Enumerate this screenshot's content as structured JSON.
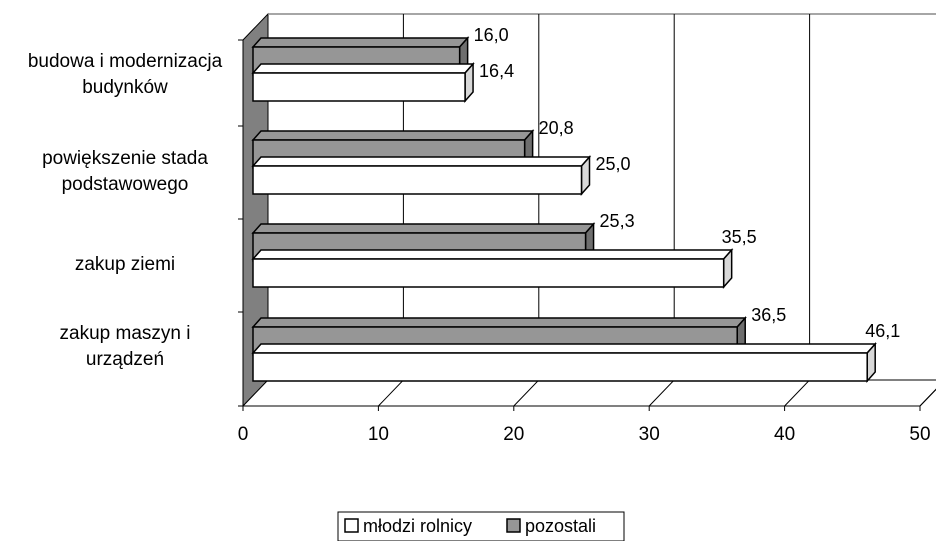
{
  "chart_data": {
    "type": "bar",
    "orientation": "horizontal",
    "style": "3d",
    "categories": [
      [
        "zakup maszyn i",
        "urządzeń"
      ],
      [
        "zakup ziemi"
      ],
      [
        "powiększenie stada",
        "podstawowego"
      ],
      [
        "budowa i modernizacja",
        "budynków"
      ]
    ],
    "series": [
      {
        "name": "młodzi rolnicy",
        "values": [
          46.1,
          35.5,
          25.0,
          16.4
        ],
        "labels": [
          "46,1",
          "35,5",
          "25,0",
          "16,4"
        ],
        "color": "#ffffff"
      },
      {
        "name": "pozostali",
        "values": [
          36.5,
          25.3,
          20.8,
          16.0
        ],
        "labels": [
          "36,5",
          "25,3",
          "20,8",
          "16,0"
        ],
        "color": "#969696"
      }
    ],
    "xlim": [
      0,
      50
    ],
    "xticks": [
      "0",
      "10",
      "20",
      "30",
      "40",
      "50"
    ],
    "grid": true,
    "legend_position": "bottom"
  },
  "colors": {
    "wall": "#808080",
    "bar_outline": "#000000",
    "grid": "#000000"
  }
}
